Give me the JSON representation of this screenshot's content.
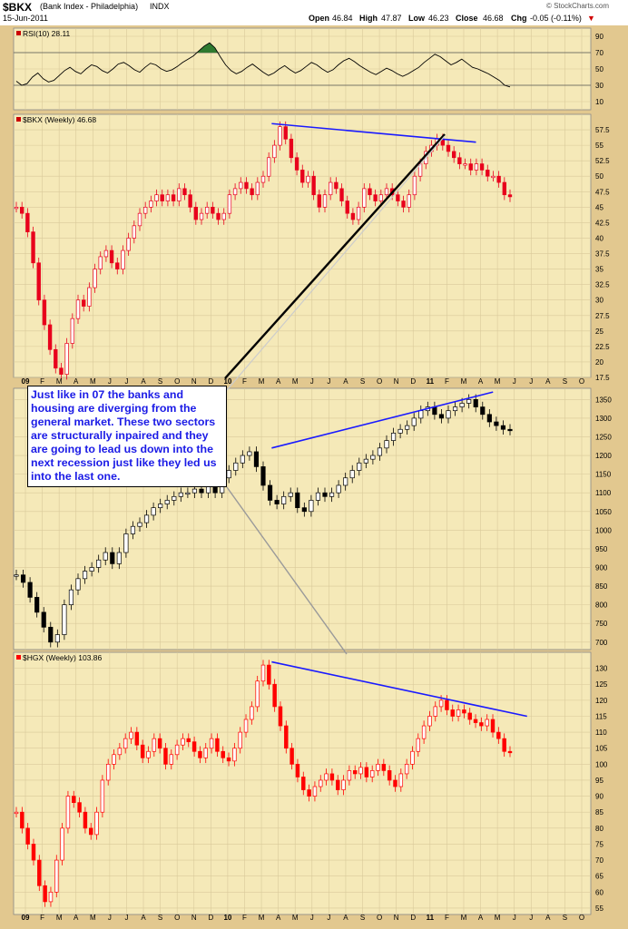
{
  "header": {
    "symbol": "$BKX",
    "name": "(Bank Index - Philadelphia)",
    "exchange": "INDX",
    "date": "15-Jun-2011",
    "open_label": "Open",
    "open": "46.84",
    "high_label": "High",
    "high": "47.87",
    "low_label": "Low",
    "low": "46.23",
    "close_label": "Close",
    "close": "46.68",
    "chg_label": "Chg",
    "chg": "-0.05 (-0.11%)",
    "chg_arrow": "▼",
    "watermark": "© StockCharts.com"
  },
  "annotation": "Just like in 07 the banks and housing are diverging from the general market. These two sectors are structurally inpaired and they are going to lead us down into the next recession just like they led us into the last one.",
  "colors": {
    "panel_bg": "#f5e9b8",
    "background": "#e2c88f",
    "up_candle": "#ffffff",
    "down_candle_bkx": "#e8001c",
    "hgx_line": "#ff0000",
    "trendline": "#1a1aff",
    "rsi_fill": "#2f7a2f"
  },
  "chart_data": [
    {
      "type": "line",
      "panel": "rsi",
      "title": "RSI(10) 28.11",
      "ylim": [
        0,
        100
      ],
      "y_ticks": [
        10,
        30,
        50,
        70,
        90
      ],
      "reference_lines": [
        30,
        70
      ],
      "series": [
        {
          "name": "RSI(10)",
          "values": [
            35,
            30,
            32,
            40,
            45,
            38,
            34,
            36,
            42,
            48,
            52,
            47,
            44,
            50,
            55,
            53,
            48,
            45,
            50,
            56,
            58,
            54,
            49,
            46,
            52,
            57,
            55,
            50,
            47,
            49,
            53,
            58,
            62,
            66,
            72,
            78,
            82,
            76,
            65,
            55,
            48,
            44,
            47,
            52,
            56,
            51,
            46,
            42,
            45,
            50,
            54,
            49,
            45,
            48,
            53,
            58,
            55,
            50,
            46,
            49,
            55,
            60,
            63,
            59,
            54,
            50,
            46,
            43,
            47,
            51,
            48,
            44,
            41,
            44,
            48,
            52,
            58,
            63,
            68,
            65,
            60,
            55,
            58,
            62,
            57,
            52,
            50,
            47,
            44,
            40,
            36,
            30,
            28
          ]
        }
      ]
    },
    {
      "type": "bar",
      "panel": "bkx",
      "title": "$BKX (Weekly) 46.68",
      "ylim": [
        17.5,
        60
      ],
      "y_ticks": [
        17.5,
        20,
        22.5,
        25,
        27.5,
        30,
        32.5,
        35,
        37.5,
        40,
        42.5,
        45,
        47.5,
        50,
        52.5,
        55,
        57.5
      ],
      "series": [
        {
          "name": "$BKX",
          "values": [
            45,
            44,
            41,
            36,
            30,
            26,
            22,
            19,
            18,
            23,
            27,
            30,
            29,
            32,
            35,
            37,
            38,
            36,
            35,
            38,
            40,
            42,
            44,
            45,
            46,
            47,
            46,
            47,
            46,
            48,
            47,
            45,
            43,
            44,
            45,
            44,
            43,
            44,
            47,
            48,
            49,
            48,
            47,
            49,
            50,
            53,
            55,
            58,
            56,
            53,
            51,
            49,
            50,
            47,
            45,
            47,
            49,
            48,
            46,
            44,
            43,
            45,
            48,
            47,
            46,
            47,
            48,
            47,
            46,
            45,
            47,
            50,
            52,
            54,
            55,
            56,
            55,
            54,
            53,
            52,
            52,
            51,
            52,
            51,
            50,
            50,
            49,
            47,
            46.68
          ]
        }
      ],
      "trendlines": [
        {
          "from": [
            "Apr 2010",
            58.5
          ],
          "to": [
            "Apr 2011",
            55.5
          ]
        }
      ]
    },
    {
      "type": "bar",
      "panel": "spx",
      "title": "",
      "ylim": [
        680,
        1380
      ],
      "y_ticks": [
        700,
        750,
        800,
        850,
        900,
        950,
        1000,
        1050,
        1100,
        1150,
        1200,
        1250,
        1300,
        1350
      ],
      "series": [
        {
          "name": "",
          "values": [
            880,
            860,
            820,
            780,
            740,
            700,
            720,
            800,
            840,
            870,
            890,
            900,
            920,
            940,
            910,
            940,
            990,
            1010,
            1020,
            1040,
            1060,
            1070,
            1080,
            1090,
            1100,
            1100,
            1110,
            1100,
            1120,
            1100,
            1140,
            1160,
            1180,
            1200,
            1210,
            1170,
            1120,
            1080,
            1070,
            1090,
            1100,
            1060,
            1050,
            1080,
            1100,
            1090,
            1100,
            1120,
            1140,
            1160,
            1180,
            1190,
            1200,
            1220,
            1240,
            1260,
            1270,
            1280,
            1300,
            1320,
            1330,
            1310,
            1300,
            1320,
            1330,
            1340,
            1350,
            1330,
            1310,
            1290,
            1280,
            1270,
            1268
          ]
        }
      ],
      "trendlines": [
        {
          "from": [
            "Apr 2010",
            1220
          ],
          "to": [
            "May 2011",
            1370
          ]
        }
      ]
    },
    {
      "type": "bar",
      "panel": "hgx",
      "title": "$HGX (Weekly) 103.86",
      "ylim": [
        53,
        135
      ],
      "y_ticks": [
        55,
        60,
        65,
        70,
        75,
        80,
        85,
        90,
        95,
        100,
        105,
        110,
        115,
        120,
        125,
        130
      ],
      "series": [
        {
          "name": "$HGX",
          "values": [
            85,
            80,
            75,
            70,
            62,
            57,
            60,
            70,
            80,
            90,
            88,
            85,
            80,
            78,
            85,
            95,
            100,
            103,
            105,
            108,
            110,
            106,
            102,
            104,
            108,
            105,
            100,
            103,
            106,
            108,
            107,
            104,
            102,
            105,
            108,
            104,
            102,
            101,
            105,
            110,
            114,
            118,
            126,
            131,
            125,
            118,
            112,
            105,
            100,
            96,
            92,
            90,
            93,
            95,
            97,
            95,
            92,
            95,
            98,
            97,
            99,
            96,
            98,
            100,
            98,
            95,
            93,
            97,
            100,
            104,
            108,
            112,
            115,
            118,
            120,
            117,
            115,
            117,
            116,
            114,
            113,
            112,
            114,
            110,
            108,
            104,
            103.86
          ]
        }
      ],
      "trendlines": [
        {
          "from": [
            "Apr 2010",
            132
          ],
          "to": [
            "Jul 2011",
            115
          ]
        }
      ]
    }
  ],
  "x_axis": {
    "labels": [
      "09",
      "F",
      "M",
      "A",
      "M",
      "J",
      "J",
      "A",
      "S",
      "O",
      "N",
      "D",
      "10",
      "F",
      "M",
      "A",
      "M",
      "J",
      "J",
      "A",
      "S",
      "O",
      "N",
      "D",
      "11",
      "F",
      "M",
      "A",
      "M",
      "J",
      "J",
      "A",
      "S",
      "O"
    ],
    "bold": [
      "09",
      "10",
      "11"
    ]
  }
}
